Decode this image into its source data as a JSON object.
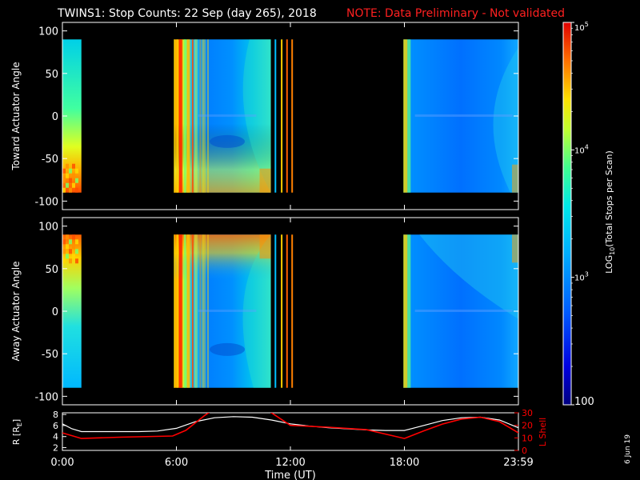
{
  "header": {
    "title": "TWINS1: Stop Counts: 22 Sep (day 265), 2018",
    "note": "NOTE: Data Preliminary - Not validated",
    "note_color": "#ff0000"
  },
  "side_stamp": "6 Jun 19",
  "chart_data": [
    {
      "type": "heatmap",
      "panel": "toward",
      "ylabel": "Toward Actuator Angle",
      "yticks": [
        100,
        50,
        0,
        -50,
        -100
      ],
      "ylim": [
        -110,
        110
      ],
      "data_ylim": [
        -90,
        90
      ],
      "xlim_hours": [
        0,
        24
      ],
      "data_blocks_hours": [
        [
          0,
          1
        ],
        [
          5.87,
          10.97
        ],
        [
          11.1,
          12.2
        ],
        [
          17.95,
          24
        ]
      ],
      "value_scale": "LOG10 total stops per scan"
    },
    {
      "type": "heatmap",
      "panel": "away",
      "ylabel": "Away Actuator Angle",
      "yticks": [
        100,
        50,
        0,
        -50,
        -100
      ],
      "ylim": [
        -110,
        110
      ],
      "data_ylim": [
        -90,
        90
      ],
      "xlim_hours": [
        0,
        24
      ],
      "data_blocks_hours": [
        [
          0,
          1
        ],
        [
          5.87,
          10.97
        ],
        [
          11.1,
          12.2
        ],
        [
          17.95,
          24
        ]
      ],
      "value_scale": "LOG10 total stops per scan"
    },
    {
      "type": "line",
      "panel": "orbit",
      "xlabel": "Time (UT)",
      "xticks": [
        "0:00",
        "6:00",
        "12:00",
        "18:00",
        "23:59"
      ],
      "xtick_hours": [
        0,
        6,
        12,
        18,
        24
      ],
      "y_left_label": "R [R",
      "y_left_sub": "E",
      "y_left_label_end": "]",
      "y_left_ticks": [
        2,
        4,
        6,
        8
      ],
      "y_left_lim": [
        1.5,
        8.3
      ],
      "y_right_label": "L Shell",
      "y_right_ticks": [
        0,
        10,
        20,
        30
      ],
      "y_right_lim": [
        0,
        30
      ],
      "y_right_color": "#ff0000",
      "series": [
        {
          "axis": "left",
          "color": "#ffffff",
          "x": [
            0,
            0.5,
            1,
            2,
            3,
            4,
            5,
            6,
            7,
            8,
            9,
            10,
            11,
            12,
            13,
            14,
            15,
            16,
            17,
            18,
            19,
            20,
            21,
            22,
            23,
            24
          ],
          "y": [
            6.3,
            5.4,
            4.9,
            4.9,
            4.9,
            4.9,
            5.0,
            5.5,
            6.7,
            7.4,
            7.6,
            7.5,
            7.0,
            6.3,
            5.9,
            5.6,
            5.4,
            5.2,
            5.1,
            5.1,
            6.0,
            6.9,
            7.4,
            7.5,
            7.0,
            5.6
          ]
        },
        {
          "axis": "right",
          "color": "#ff0000",
          "x": [
            0,
            1,
            3,
            5.8,
            6.5,
            7.5,
            7.8,
            10.9,
            11.5,
            12,
            14,
            16,
            18,
            19,
            20,
            21,
            22,
            23,
            24
          ],
          "y": [
            14,
            9.5,
            10.5,
            11.5,
            16,
            28,
            31,
            31,
            25,
            20,
            18.5,
            16.5,
            9.5,
            15.5,
            21,
            25,
            26.5,
            23,
            14
          ]
        }
      ]
    },
    {
      "type": "colorbar",
      "label": "LOG",
      "label_sub": "10",
      "label_rest": "(Total Stops per Scan)",
      "tick_values": [
        100,
        1000,
        10000,
        100000
      ],
      "tick_labels": [
        {
          "base": "100",
          "sup": ""
        },
        {
          "base": "10",
          "sup": "3"
        },
        {
          "base": "10",
          "sup": "4"
        },
        {
          "base": "10",
          "sup": "5"
        }
      ]
    }
  ]
}
